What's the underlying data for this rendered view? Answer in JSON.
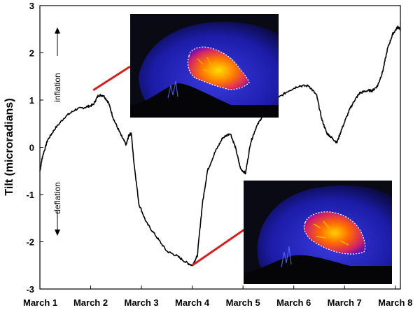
{
  "chart_data": {
    "type": "line",
    "ylabel": "Tilt (microradians)",
    "xlabel": "",
    "x_ticks": [
      "March 1",
      "March 2",
      "March 3",
      "March 4",
      "March 5",
      "March 6",
      "March 7",
      "March 8"
    ],
    "xlim": [
      0,
      7.1
    ],
    "ylim": [
      -3,
      3
    ],
    "y_ticks": [
      -3,
      -2,
      -1,
      0,
      1,
      2,
      3
    ],
    "grid": false,
    "series": [
      {
        "color": "#000000",
        "x": [
          0.0,
          0.05,
          0.15,
          0.3,
          0.5,
          0.7,
          0.9,
          1.05,
          1.15,
          1.25,
          1.35,
          1.45,
          1.6,
          1.7,
          1.75,
          1.8,
          1.85,
          1.95,
          2.1,
          2.3,
          2.5,
          2.7,
          2.9,
          3.0,
          3.1,
          3.2,
          3.3,
          3.45,
          3.6,
          3.75,
          3.85,
          3.95,
          4.05,
          4.15,
          4.25,
          4.4,
          4.55,
          4.7,
          4.9,
          5.1,
          5.3,
          5.45,
          5.55,
          5.65,
          5.75,
          5.85,
          5.95,
          6.1,
          6.2,
          6.3,
          6.45,
          6.55,
          6.65,
          6.75,
          6.85,
          6.95,
          7.05,
          7.1
        ],
        "y": [
          -0.5,
          -0.2,
          0.15,
          0.4,
          0.65,
          0.8,
          0.85,
          0.9,
          1.1,
          1.1,
          0.95,
          0.6,
          0.25,
          0.05,
          0.25,
          0.3,
          -0.3,
          -1.2,
          -1.6,
          -1.9,
          -2.2,
          -2.3,
          -2.45,
          -2.5,
          -2.3,
          -1.2,
          -0.5,
          -0.1,
          0.2,
          0.3,
          0.0,
          -0.45,
          -0.55,
          0.1,
          0.4,
          0.7,
          0.9,
          1.05,
          1.2,
          1.3,
          1.3,
          1.1,
          0.6,
          0.3,
          0.2,
          0.1,
          0.4,
          0.8,
          1.0,
          1.15,
          1.2,
          1.2,
          1.3,
          1.6,
          2.1,
          2.4,
          2.55,
          2.5
        ]
      }
    ],
    "annotations": [
      {
        "text": "inflation",
        "arrow": "up"
      },
      {
        "text": "deflation",
        "arrow": "down"
      }
    ],
    "insets": [
      {
        "name": "thermal-image-inflation",
        "links_to": {
          "x": 1.05,
          "y": 1.15
        }
      },
      {
        "name": "thermal-image-deflation",
        "links_to": {
          "x": 3.0,
          "y": -2.5
        }
      }
    ],
    "colors": {
      "line": "#000000",
      "connector": "#d42020",
      "inset_background": "#0a0a14",
      "inset_rim": "#2828c8",
      "hot": "#ff8a00",
      "hotter": "#ffd000",
      "cool": "#a01ec8",
      "outline": "#ffffff"
    }
  }
}
